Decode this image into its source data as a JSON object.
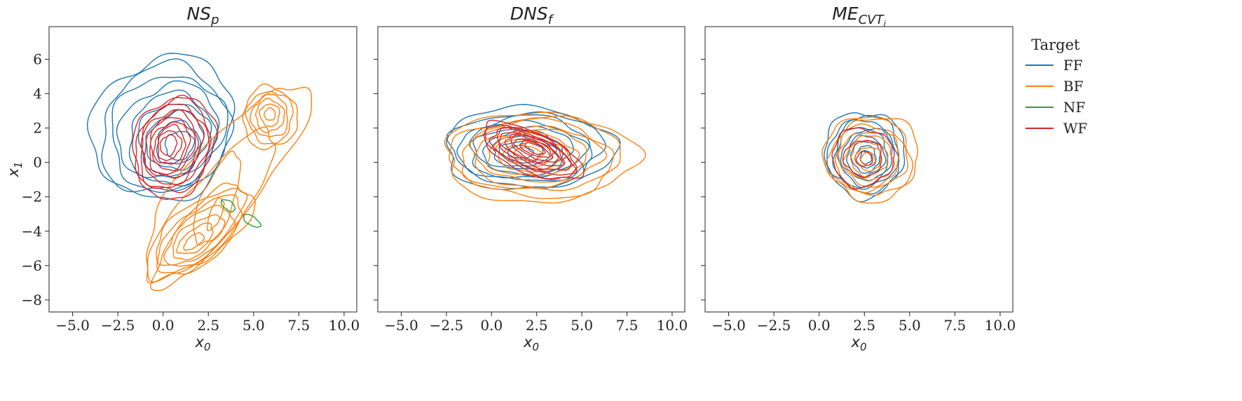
{
  "colors": {
    "FF": "#1f77b4",
    "BF": "#ff7f0e",
    "NF": "#2ca02c",
    "WF": "#d62728"
  },
  "legend": {
    "title": "Target",
    "entries": [
      {
        "label": "FF",
        "color": "#1f77b4"
      },
      {
        "label": "BF",
        "color": "#ff7f0e"
      },
      {
        "label": "NF",
        "color": "#2ca02c"
      },
      {
        "label": "WF",
        "color": "#d62728"
      }
    ],
    "placement": "right-outside"
  },
  "chart_data": [
    {
      "type": "contour",
      "title": {
        "main": "NS",
        "sub": "p",
        "subsub": ""
      },
      "xlabel": {
        "main": "x",
        "sub": "0"
      },
      "ylabel": {
        "main": "x",
        "sub": "1"
      },
      "xlim": [
        -6.3,
        10.7
      ],
      "ylim": [
        -8.7,
        7.9
      ],
      "xticks": [
        "−5.0",
        "−2.5",
        "0.0",
        "2.5",
        "5.0",
        "7.5",
        "10.0"
      ],
      "xtick_values": [
        -5,
        -2.5,
        0,
        2.5,
        5,
        7.5,
        10
      ],
      "yticks": [
        "−8",
        "−6",
        "−4",
        "−2",
        "0",
        "2",
        "4",
        "6"
      ],
      "ytick_values": [
        -8,
        -6,
        -4,
        -2,
        0,
        2,
        4,
        6
      ],
      "show_yticklabels": true,
      "grid": false,
      "series": [
        {
          "target": "FF",
          "blobs": [
            {
              "center": [
                0.0,
                2.0
              ],
              "peak": [
                0.9,
                1.0
              ],
              "rx": 3.8,
              "ry": 4.3,
              "rot": -30,
              "levels": 9,
              "inner": 0.2
            }
          ]
        },
        {
          "target": "BF",
          "blobs": [
            {
              "center": [
                3.4,
                -1.1
              ],
              "peak": [
                2.0,
                -4.2
              ],
              "rx": 6.9,
              "ry": 2.1,
              "rot": 52,
              "levels": 3,
              "inner": 0.55
            },
            {
              "center": [
                2.2,
                -4.0
              ],
              "peak": [
                1.7,
                -4.6
              ],
              "rx": 3.3,
              "ry": 1.6,
              "rot": 40,
              "levels": 6,
              "inner": 0.2
            },
            {
              "center": [
                5.9,
                2.6
              ],
              "peak": [
                5.9,
                2.8
              ],
              "rx": 1.5,
              "ry": 1.8,
              "rot": 0,
              "levels": 6,
              "inner": 0.2
            },
            {
              "center": [
                3.0,
                -2.2
              ],
              "peak": [
                2.9,
                -3.0
              ],
              "rx": 2.8,
              "ry": 0.9,
              "rot": 70,
              "levels": 2,
              "inner": 0.35
            }
          ]
        },
        {
          "target": "NF",
          "blobs": [
            {
              "center": [
                3.6,
                -2.5
              ],
              "peak": [
                3.6,
                -2.5
              ],
              "rx": 0.45,
              "ry": 0.25,
              "rot": -40,
              "levels": 1,
              "inner": 1
            },
            {
              "center": [
                4.9,
                -3.4
              ],
              "peak": [
                4.9,
                -3.4
              ],
              "rx": 0.55,
              "ry": 0.25,
              "rot": -35,
              "levels": 1,
              "inner": 1
            }
          ]
        },
        {
          "target": "WF",
          "blobs": [
            {
              "center": [
                0.6,
                0.9
              ],
              "peak": [
                0.3,
                1.0
              ],
              "rx": 2.2,
              "ry": 3.0,
              "rot": -15,
              "levels": 10,
              "inner": 0.2
            }
          ]
        }
      ]
    },
    {
      "type": "contour",
      "title": {
        "main": "DNS",
        "sub": "f",
        "subsub": ""
      },
      "xlabel": {
        "main": "x",
        "sub": "0"
      },
      "ylabel": {
        "main": "",
        "sub": ""
      },
      "xlim": [
        -6.3,
        10.7
      ],
      "ylim": [
        -8.7,
        7.9
      ],
      "xticks": [
        "−5.0",
        "−2.5",
        "0.0",
        "2.5",
        "5.0",
        "7.5",
        "10.0"
      ],
      "xtick_values": [
        -5,
        -2.5,
        0,
        2.5,
        5,
        7.5,
        10
      ],
      "yticks": [],
      "ytick_values": [
        -8,
        -6,
        -4,
        -2,
        0,
        2,
        4,
        6
      ],
      "show_yticklabels": false,
      "grid": false,
      "series": [
        {
          "target": "FF",
          "blobs": [
            {
              "center": [
                2.0,
                0.8
              ],
              "peak": [
                1.6,
                0.6
              ],
              "rx": 4.7,
              "ry": 2.4,
              "rot": 0,
              "levels": 9,
              "inner": 0.15
            }
          ]
        },
        {
          "target": "BF",
          "blobs": [
            {
              "center": [
                2.6,
                0.3
              ],
              "peak": [
                2.0,
                0.5
              ],
              "rx": 5.3,
              "ry": 2.6,
              "rot": 0,
              "levels": 9,
              "inner": 0.15
            }
          ]
        },
        {
          "target": "WF",
          "blobs": [
            {
              "center": [
                2.2,
                0.6
              ],
              "peak": [
                2.4,
                0.8
              ],
              "rx": 3.0,
              "ry": 1.2,
              "rot": -25,
              "levels": 10,
              "inner": 0.2
            }
          ]
        }
      ]
    },
    {
      "type": "contour",
      "title": {
        "main": "ME",
        "sub": "CVT",
        "subsub": "i"
      },
      "xlabel": {
        "main": "x",
        "sub": "0"
      },
      "ylabel": {
        "main": "",
        "sub": ""
      },
      "xlim": [
        -6.3,
        10.7
      ],
      "ylim": [
        -8.7,
        7.9
      ],
      "xticks": [
        "−5.0",
        "−2.5",
        "0.0",
        "2.5",
        "5.0",
        "7.5",
        "10.0"
      ],
      "xtick_values": [
        -5,
        -2.5,
        0,
        2.5,
        5,
        7.5,
        10
      ],
      "yticks": [],
      "ytick_values": [
        -8,
        -6,
        -4,
        -2,
        0,
        2,
        4,
        6
      ],
      "show_yticklabels": false,
      "grid": false,
      "series": [
        {
          "target": "FF",
          "blobs": [
            {
              "center": [
                2.5,
                0.5
              ],
              "peak": [
                2.6,
                0.3
              ],
              "rx": 2.2,
              "ry": 2.5,
              "rot": 0,
              "levels": 9,
              "inner": 0.15
            }
          ]
        },
        {
          "target": "BF",
          "blobs": [
            {
              "center": [
                2.9,
                0.3
              ],
              "peak": [
                2.7,
                0.2
              ],
              "rx": 2.6,
              "ry": 2.5,
              "rot": 0,
              "levels": 8,
              "inner": 0.15
            }
          ]
        },
        {
          "target": "WF",
          "blobs": [
            {
              "center": [
                2.4,
                0.3
              ],
              "peak": [
                2.5,
                0.2
              ],
              "rx": 1.7,
              "ry": 1.7,
              "rot": 0,
              "levels": 3,
              "inner": 0.25
            }
          ]
        }
      ]
    }
  ]
}
